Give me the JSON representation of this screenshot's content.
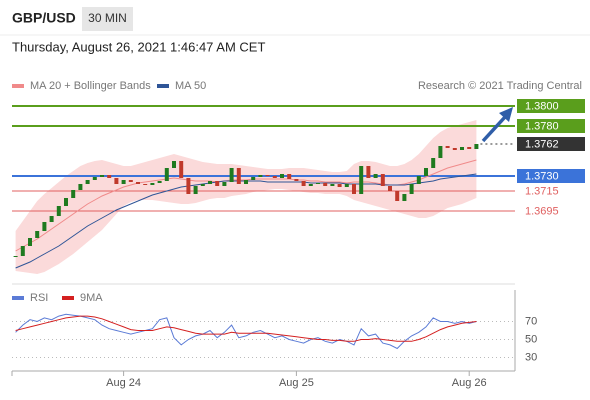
{
  "header": {
    "symbol": "GBP/USD",
    "interval": "30 MIN",
    "timestamp": "Thursday, August 26, 2021 1:46:47 AM CET",
    "credit": "Research © 2021 Trading Central"
  },
  "chart_data": [
    {
      "type": "candlestick",
      "up_color": "#1f7a1f",
      "down_color": "#c0392b",
      "close": [
        1.365,
        1.366,
        1.3668,
        1.3675,
        1.3684,
        1.369,
        1.37,
        1.3708,
        1.3716,
        1.3722,
        1.3726,
        1.3729,
        1.3731,
        1.3728,
        1.3722,
        1.3726,
        1.3724,
        1.3722,
        1.3721,
        1.3723,
        1.3725,
        1.3738,
        1.3745,
        1.3728,
        1.3712,
        1.372,
        1.3722,
        1.3725,
        1.372,
        1.3724,
        1.3738,
        1.3722,
        1.3726,
        1.3729,
        1.3731,
        1.373,
        1.3728,
        1.3732,
        1.3727,
        1.3725,
        1.372,
        1.3722,
        1.3723,
        1.372,
        1.3722,
        1.3719,
        1.3722,
        1.3712,
        1.374,
        1.3728,
        1.3732,
        1.372,
        1.3715,
        1.3705,
        1.3712,
        1.3722,
        1.373,
        1.3738,
        1.3748,
        1.376,
        1.3758,
        1.3756,
        1.3759,
        1.3757,
        1.3762
      ],
      "series": [
        {
          "name": "MA 20 + Bollinger Bands",
          "color": "#f08a8a",
          "band_color": "#fbdada",
          "values": [
            1.3655,
            1.3659,
            1.3663,
            1.3667,
            1.3672,
            1.3677,
            1.3682,
            1.3687,
            1.3692,
            1.3697,
            1.3702,
            1.3706,
            1.371,
            1.3713,
            1.3716,
            1.3719,
            1.3721,
            1.3723,
            1.3724,
            1.3725,
            1.3726,
            1.3727,
            1.3728,
            1.3727,
            1.3726,
            1.3725,
            1.3725,
            1.3725,
            1.3724,
            1.3725,
            1.3726,
            1.3726,
            1.3726,
            1.3727,
            1.3727,
            1.3727,
            1.3727,
            1.3727,
            1.3727,
            1.3726,
            1.3726,
            1.3725,
            1.3725,
            1.3724,
            1.3724,
            1.3724,
            1.3723,
            1.3724,
            1.3724,
            1.3724,
            1.3723,
            1.3722,
            1.3721,
            1.3721,
            1.3722,
            1.3724,
            1.3726,
            1.3729,
            1.3732,
            1.3735,
            1.3738,
            1.374,
            1.3742,
            1.3744,
            1.3746
          ],
          "upper": [
            1.3675,
            1.3685,
            1.3695,
            1.3705,
            1.3712,
            1.3718,
            1.3724,
            1.373,
            1.3735,
            1.374,
            1.3743,
            1.3745,
            1.3746,
            1.3744,
            1.3742,
            1.374,
            1.374,
            1.3742,
            1.3744,
            1.3746,
            1.3748,
            1.375,
            1.3752,
            1.375,
            1.3748,
            1.3746,
            1.3744,
            1.3743,
            1.3742,
            1.3742,
            1.3742,
            1.3741,
            1.374,
            1.3739,
            1.3738,
            1.3737,
            1.3737,
            1.3737,
            1.3738,
            1.3738,
            1.3738,
            1.3737,
            1.3736,
            1.3735,
            1.3734,
            1.3734,
            1.3735,
            1.3742,
            1.3745,
            1.3745,
            1.3744,
            1.3742,
            1.374,
            1.374,
            1.3742,
            1.3746,
            1.3752,
            1.376,
            1.3768,
            1.3774,
            1.3778,
            1.378,
            1.3782,
            1.3784,
            1.3786
          ],
          "lower": [
            1.3635,
            1.3634,
            1.3633,
            1.3632,
            1.3634,
            1.3638,
            1.3642,
            1.3647,
            1.3652,
            1.3658,
            1.3664,
            1.367,
            1.3676,
            1.3684,
            1.3692,
            1.37,
            1.3704,
            1.3706,
            1.3706,
            1.3706,
            1.3705,
            1.3704,
            1.3703,
            1.3702,
            1.3702,
            1.3703,
            1.3705,
            1.3707,
            1.3708,
            1.3708,
            1.371,
            1.3711,
            1.3712,
            1.3714,
            1.3715,
            1.3716,
            1.3717,
            1.3717,
            1.3716,
            1.3715,
            1.3714,
            1.3713,
            1.3713,
            1.3712,
            1.3712,
            1.3712,
            1.371,
            1.3706,
            1.3704,
            1.3702,
            1.37,
            1.3698,
            1.3696,
            1.3694,
            1.3692,
            1.369,
            1.3688,
            1.3688,
            1.369,
            1.3694,
            1.3698,
            1.37,
            1.3702,
            1.3705,
            1.3708
          ]
        },
        {
          "name": "MA 50",
          "color": "#2f5597",
          "values": [
            1.3638,
            1.3641,
            1.3644,
            1.3648,
            1.3652,
            1.3656,
            1.366,
            1.3665,
            1.367,
            1.3675,
            1.368,
            1.3684,
            1.3688,
            1.3692,
            1.3696,
            1.3699,
            1.3702,
            1.3705,
            1.3708,
            1.3711,
            1.3713,
            1.3715,
            1.3717,
            1.3719,
            1.372,
            1.3721,
            1.3722,
            1.3723,
            1.3724,
            1.3725,
            1.3725,
            1.3725,
            1.3725,
            1.3725,
            1.3725,
            1.3724,
            1.3724,
            1.3724,
            1.3724,
            1.3724,
            1.3724,
            1.3723,
            1.3723,
            1.3723,
            1.3723,
            1.3723,
            1.3722,
            1.3722,
            1.3722,
            1.3722,
            1.3722,
            1.3721,
            1.3721,
            1.3721,
            1.3721,
            1.3722,
            1.3723,
            1.3724,
            1.3725,
            1.3727,
            1.3728,
            1.3729,
            1.373,
            1.3731,
            1.3732
          ]
        }
      ],
      "levels": [
        {
          "value": 1.38,
          "label": "1.3800",
          "color": "#5a9e1c",
          "style": "box",
          "line": "solid"
        },
        {
          "value": 1.378,
          "label": "1.3780",
          "color": "#5a9e1c",
          "style": "box",
          "line": "solid"
        },
        {
          "value": 1.3762,
          "label": "1.3762",
          "color": "#333333",
          "style": "box",
          "line": "dotted"
        },
        {
          "value": 1.373,
          "label": "1.3730",
          "color": "#3b73d9",
          "style": "box",
          "line": "solid"
        },
        {
          "value": 1.3715,
          "label": "1.3715",
          "color": "#e06060",
          "style": "text",
          "line": "solid"
        },
        {
          "value": 1.3695,
          "label": "1.3695",
          "color": "#e06060",
          "style": "text",
          "line": "solid"
        }
      ],
      "ylim": [
        1.3636,
        1.3811
      ]
    },
    {
      "type": "line",
      "categories": [
        null,
        null,
        null,
        null,
        null,
        null,
        null,
        null,
        null,
        null,
        null,
        null,
        null,
        null,
        null,
        "Aug 24",
        null,
        null,
        null,
        null,
        null,
        null,
        null,
        null,
        null,
        null,
        null,
        null,
        null,
        null,
        null,
        null,
        null,
        null,
        null,
        null,
        null,
        null,
        null,
        "Aug 25",
        null,
        null,
        null,
        null,
        null,
        null,
        null,
        null,
        null,
        null,
        null,
        null,
        null,
        null,
        null,
        null,
        null,
        null,
        null,
        null,
        null,
        null,
        null,
        "Aug 26",
        null
      ],
      "series": [
        {
          "name": "RSI",
          "color": "#5b7bd6",
          "values": [
            58,
            66,
            72,
            70,
            74,
            72,
            76,
            78,
            77,
            76,
            74,
            72,
            66,
            62,
            60,
            58,
            56,
            58,
            60,
            62,
            72,
            74,
            52,
            44,
            50,
            54,
            56,
            60,
            52,
            58,
            66,
            52,
            54,
            58,
            60,
            56,
            52,
            54,
            50,
            48,
            46,
            50,
            52,
            48,
            46,
            50,
            48,
            44,
            62,
            54,
            56,
            46,
            44,
            40,
            48,
            54,
            58,
            64,
            74,
            70,
            70,
            68,
            70,
            68,
            70
          ]
        },
        {
          "name": "9MA",
          "color": "#d42020",
          "values": [
            60,
            62,
            64,
            66,
            68,
            70,
            72,
            74,
            75,
            76,
            76,
            75,
            73,
            70,
            67,
            64,
            61,
            60,
            60,
            60,
            62,
            64,
            63,
            61,
            59,
            57,
            56,
            56,
            56,
            56,
            58,
            57,
            57,
            57,
            57,
            57,
            56,
            55,
            54,
            53,
            52,
            51,
            50,
            50,
            49,
            49,
            48,
            48,
            50,
            50,
            51,
            50,
            49,
            48,
            48,
            48,
            50,
            53,
            57,
            61,
            64,
            66,
            68,
            69,
            70
          ]
        }
      ],
      "ylim": [
        15,
        105
      ],
      "yticks": [
        30,
        50,
        70
      ],
      "grid": true
    }
  ]
}
